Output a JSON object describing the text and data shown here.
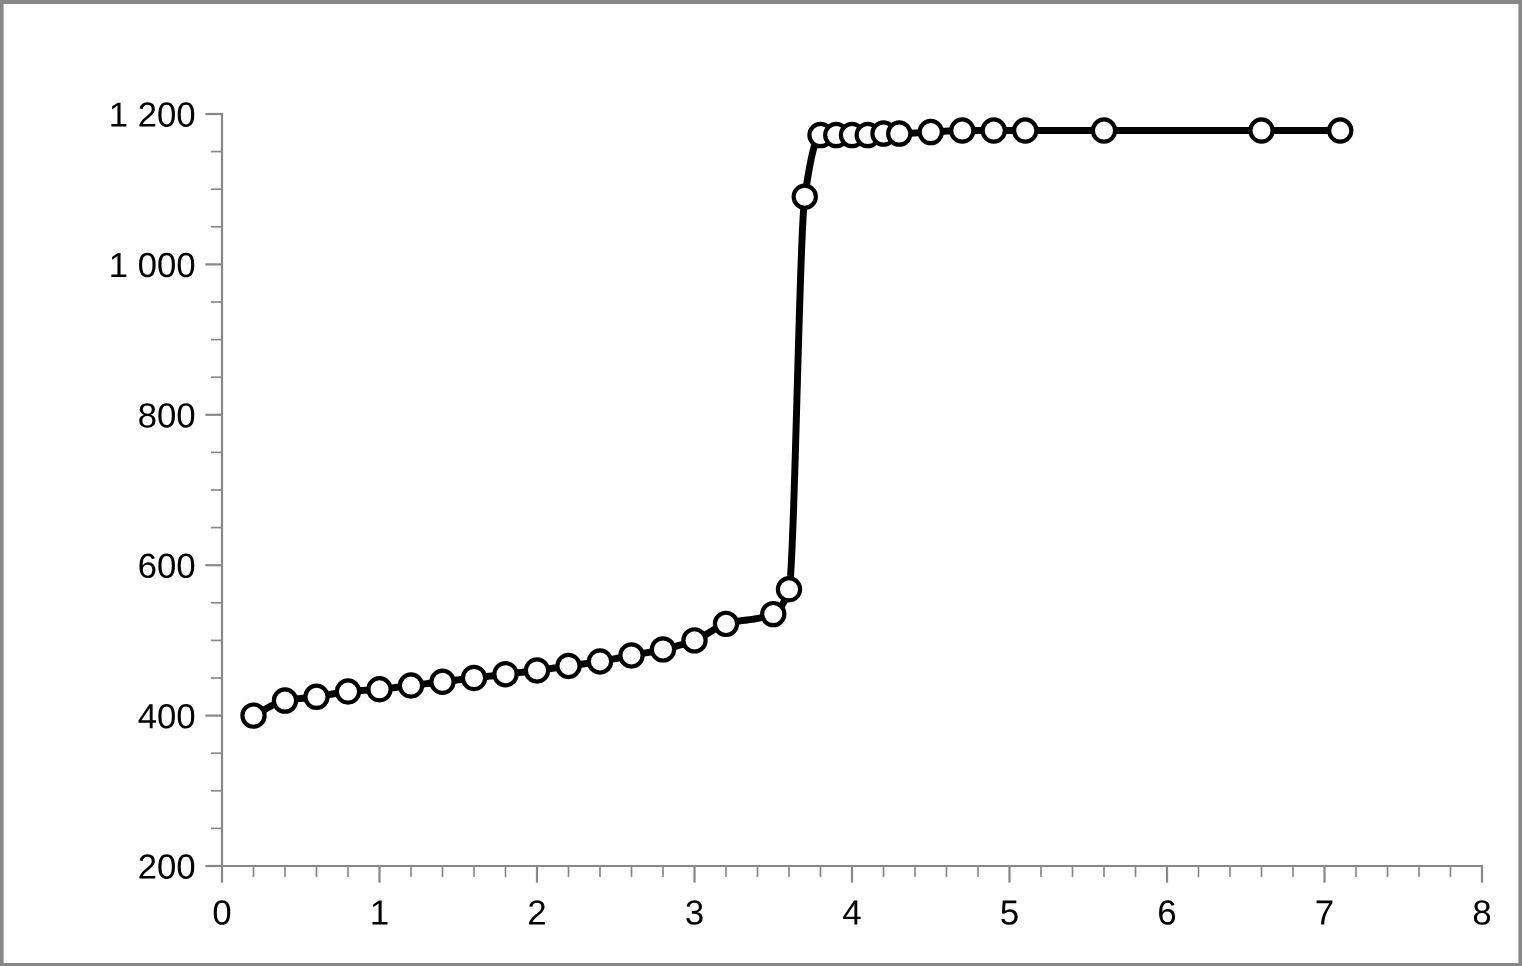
{
  "chart_data": {
    "type": "line",
    "x": [
      0.2,
      0.4,
      0.6,
      0.8,
      1.0,
      1.2,
      1.4,
      1.6,
      1.8,
      2.0,
      2.2,
      2.4,
      2.6,
      2.8,
      3.0,
      3.2,
      3.5,
      3.6,
      3.7,
      3.8,
      3.9,
      4.0,
      4.1,
      4.2,
      4.3,
      4.5,
      4.7,
      4.9,
      5.1,
      5.6,
      6.6,
      7.1
    ],
    "series": [
      {
        "color": "#000000",
        "values": [
          400,
          420,
          425,
          432,
          435,
          440,
          445,
          450,
          455,
          460,
          466,
          472,
          480,
          488,
          500,
          522,
          535,
          568,
          1090,
          1172,
          1172,
          1172,
          1172,
          1174,
          1174,
          1176,
          1178,
          1178,
          1178,
          1178,
          1178,
          1178
        ]
      }
    ],
    "xlim": [
      0,
      8
    ],
    "xticks": [
      0,
      1,
      2,
      3,
      4,
      5,
      6,
      7,
      8
    ],
    "ylim": [
      200,
      1200
    ],
    "yticks": [
      {
        "value": 200,
        "label": "200"
      },
      {
        "value": 400,
        "label": "400"
      },
      {
        "value": 600,
        "label": "600"
      },
      {
        "value": 800,
        "label": "800"
      },
      {
        "value": 1000,
        "label": "1 000"
      },
      {
        "value": 1200,
        "label": "1 200"
      }
    ],
    "marker": "circle",
    "line_style": "solid",
    "grid": false,
    "legend": false
  }
}
